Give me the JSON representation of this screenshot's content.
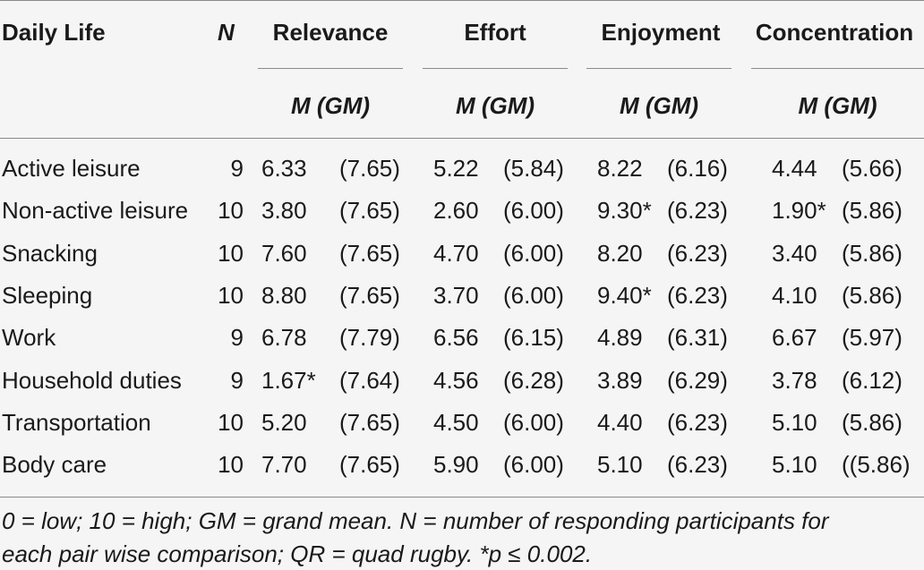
{
  "table": {
    "columns": {
      "daily_life": "Daily Life",
      "n": "N",
      "relevance": "Relevance",
      "effort": "Effort",
      "enjoyment": "Enjoyment",
      "concentration": "Concentration"
    },
    "subheader": "M (GM)",
    "rows": [
      {
        "label": "Active leisure",
        "n": "9",
        "rel_m": "6.33",
        "rel_gm": "(7.65)",
        "eff_m": "5.22",
        "eff_gm": "(5.84)",
        "enj_m": "8.22",
        "enj_gm": "(6.16)",
        "con_m": "4.44",
        "con_gm": "(5.66)"
      },
      {
        "label": "Non-active leisure",
        "n": "10",
        "rel_m": "3.80",
        "rel_gm": "(7.65)",
        "eff_m": "2.60",
        "eff_gm": "(6.00)",
        "enj_m": "9.30*",
        "enj_gm": "(6.23)",
        "con_m": "1.90*",
        "con_gm": "(5.86)"
      },
      {
        "label": "Snacking",
        "n": "10",
        "rel_m": "7.60",
        "rel_gm": "(7.65)",
        "eff_m": "4.70",
        "eff_gm": "(6.00)",
        "enj_m": "8.20",
        "enj_gm": "(6.23)",
        "con_m": "3.40",
        "con_gm": "(5.86)"
      },
      {
        "label": "Sleeping",
        "n": "10",
        "rel_m": "8.80",
        "rel_gm": "(7.65)",
        "eff_m": "3.70",
        "eff_gm": "(6.00)",
        "enj_m": "9.40*",
        "enj_gm": "(6.23)",
        "con_m": "4.10",
        "con_gm": "(5.86)"
      },
      {
        "label": "Work",
        "n": "9",
        "rel_m": "6.78",
        "rel_gm": "(7.79)",
        "eff_m": "6.56",
        "eff_gm": "(6.15)",
        "enj_m": "4.89",
        "enj_gm": "(6.31)",
        "con_m": "6.67",
        "con_gm": "(5.97)"
      },
      {
        "label": "Household duties",
        "n": "9",
        "rel_m": "1.67*",
        "rel_gm": "(7.64)",
        "eff_m": "4.56",
        "eff_gm": "(6.28)",
        "enj_m": "3.89",
        "enj_gm": "(6.29)",
        "con_m": "3.78",
        "con_gm": "(6.12)"
      },
      {
        "label": "Transportation",
        "n": "10",
        "rel_m": "5.20",
        "rel_gm": "(7.65)",
        "eff_m": "4.50",
        "eff_gm": "(6.00)",
        "enj_m": "4.40",
        "enj_gm": "(6.23)",
        "con_m": "5.10",
        "con_gm": "(5.86)"
      },
      {
        "label": "Body care",
        "n": "10",
        "rel_m": "7.70",
        "rel_gm": "(7.65)",
        "eff_m": "5.90",
        "eff_gm": "(6.00)",
        "enj_m": "5.10",
        "enj_gm": "(6.23)",
        "con_m": "5.10",
        "con_gm": "((5.86)"
      }
    ],
    "footnote": {
      "line1": "0 = low; 10 = high; GM = grand mean. N = number of responding participants for",
      "line2": "each pair wise comparison; QR = quad rugby. *p ≤ 0.002."
    }
  }
}
